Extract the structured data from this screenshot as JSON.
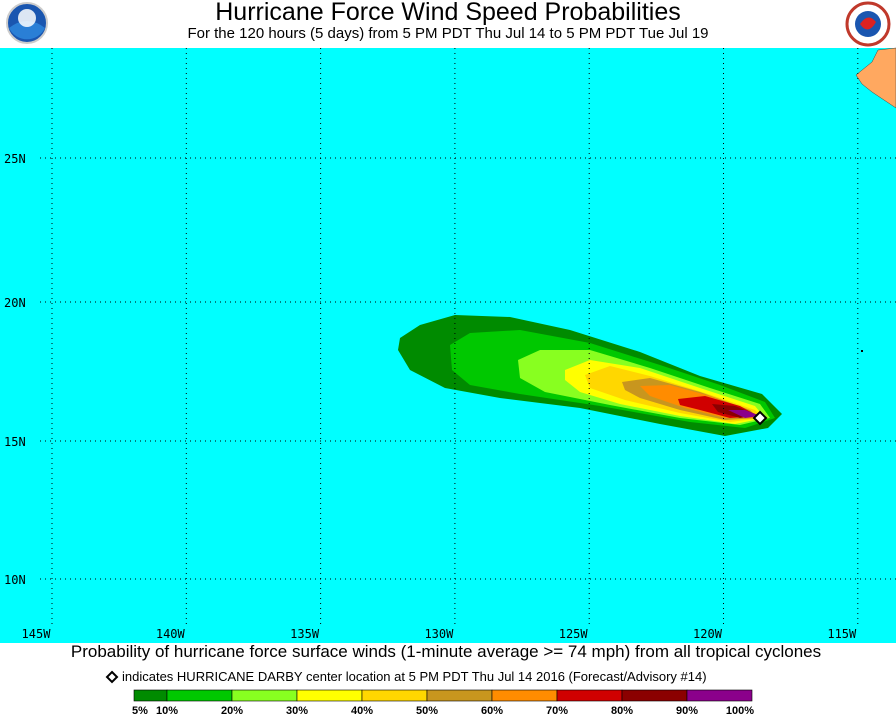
{
  "header": {
    "title": "Hurricane Force Wind Speed Probabilities",
    "subtitle": "For the 120 hours (5 days) from 5 PM PDT Thu Jul 14 to 5 PM PDT Tue Jul 19"
  },
  "map": {
    "lat_labels": [
      "25N",
      "20N",
      "15N",
      "10N"
    ],
    "lon_labels": [
      "145W",
      "140W",
      "135W",
      "130W",
      "125W",
      "120W",
      "115W"
    ]
  },
  "footer": {
    "caption": "Probability of hurricane force surface winds (1-minute average >= 74 mph) from all tropical cyclones",
    "note": "indicates HURRICANE DARBY center location at 5 PM PDT Thu Jul 14 2016 (Forecast/Advisory #14)",
    "legend_labels": [
      "5%",
      "10%",
      "20%",
      "30%",
      "40%",
      "50%",
      "60%",
      "70%",
      "80%",
      "90%",
      "100%"
    ],
    "legend_colors": [
      "#008b00",
      "#00c800",
      "#88ff20",
      "#ffff00",
      "#ffd700",
      "#c8961e",
      "#ff8c00",
      "#d00000",
      "#8b0000",
      "#8b008b"
    ]
  }
}
